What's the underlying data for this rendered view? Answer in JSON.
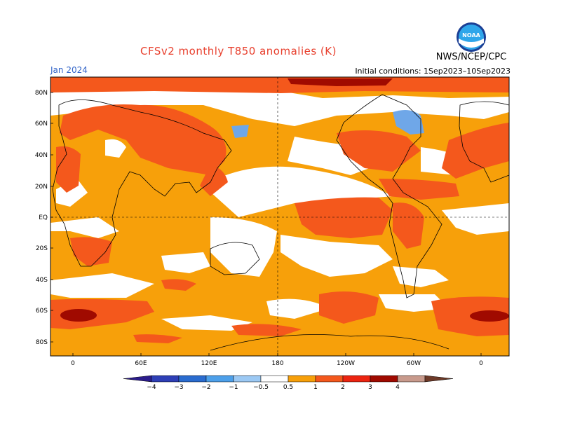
{
  "header": {
    "title": "CFSv2 monthly T850 anomalies (K)",
    "title_color": "#e8412f",
    "agency": "NWS/NCEP/CPC",
    "month": "Jan 2024",
    "month_color": "#3264c8",
    "initial_conditions": "Initial conditions: 1Sep2023–10Sep2023",
    "logo_text": "NOAA",
    "logo_icon": "noaa-logo"
  },
  "map": {
    "lat_labels": [
      "80N",
      "60N",
      "40N",
      "20N",
      "EQ",
      "20S",
      "40S",
      "60S",
      "80S"
    ],
    "lon_labels": [
      "0",
      "60E",
      "120E",
      "180",
      "120W",
      "60W",
      "0"
    ],
    "grid": "dashed"
  },
  "colorbar": {
    "labels": [
      "−4",
      "−3",
      "−2",
      "−1",
      "−0.5",
      "0.5",
      "1",
      "2",
      "3",
      "4"
    ],
    "colors": [
      "#2b1c8c",
      "#2e3fb6",
      "#2a6ccf",
      "#4da0ea",
      "#9cc9f4",
      "#ffffff",
      "#f7a00a",
      "#f4581c",
      "#ec2410",
      "#a00a00",
      "#c89a8c",
      "#6e3a28"
    ]
  },
  "palette": {
    "land_white": "#ffffff",
    "orange": "#f7a00a",
    "red_orange": "#f4581c",
    "red": "#ec2410",
    "dark_red": "#a00a00",
    "light_blue": "#6fa7e8"
  }
}
